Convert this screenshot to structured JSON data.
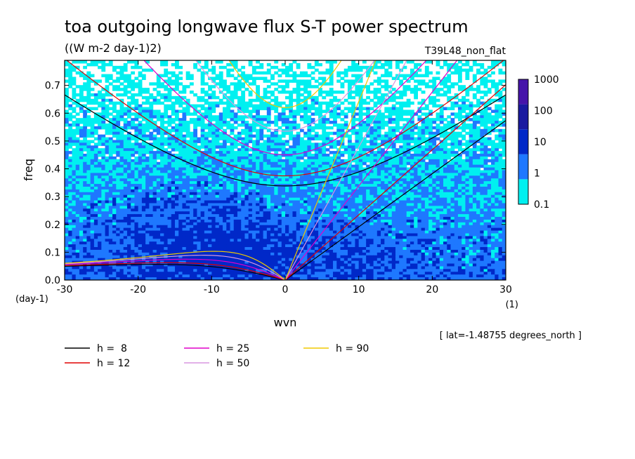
{
  "chart_data": {
    "type": "heatmap",
    "title": "toa outgoing longwave flux S-T power spectrum",
    "subtitle": "((W m-2 day-1)2)",
    "run_label": "T39L48_non_flat",
    "xlabel": "wvn",
    "ylabel": "freq",
    "x_units": "(1)",
    "y_units": "(day-1)",
    "xlim": [
      -30,
      30
    ],
    "ylim": [
      0,
      0.79
    ],
    "x_ticks": [
      -30,
      -20,
      -10,
      0,
      10,
      20,
      30
    ],
    "x_tick_labels": [
      "-30",
      "-20",
      "-10",
      "0",
      "10",
      "20",
      "30"
    ],
    "y_ticks": [
      0.0,
      0.1,
      0.2,
      0.3,
      0.4,
      0.5,
      0.6,
      0.7
    ],
    "y_tick_labels": [
      "0.0",
      "0.1",
      "0.2",
      "0.3",
      "0.4",
      "0.5",
      "0.6",
      "0.7"
    ],
    "annotation": "[ lat=-1.48755 degrees_north ]",
    "colorbar": {
      "levels": [
        "0.1",
        "1",
        "10",
        "100",
        "1000"
      ],
      "colors": [
        "#00f0f0",
        "#1e78ff",
        "#0028c8",
        "#1a1aa0",
        "#4614aa"
      ]
    },
    "dispersion_curves": [
      {
        "label": "h =  8",
        "h": 8,
        "color": "#000000"
      },
      {
        "label": "h = 12",
        "h": 12,
        "color": "#e00000"
      },
      {
        "label": "h = 25",
        "h": 25,
        "color": "#e000c8"
      },
      {
        "label": "h = 50",
        "h": 50,
        "color": "#d896e0"
      },
      {
        "label": "h = 90",
        "h": 90,
        "color": "#f0c800"
      }
    ]
  }
}
